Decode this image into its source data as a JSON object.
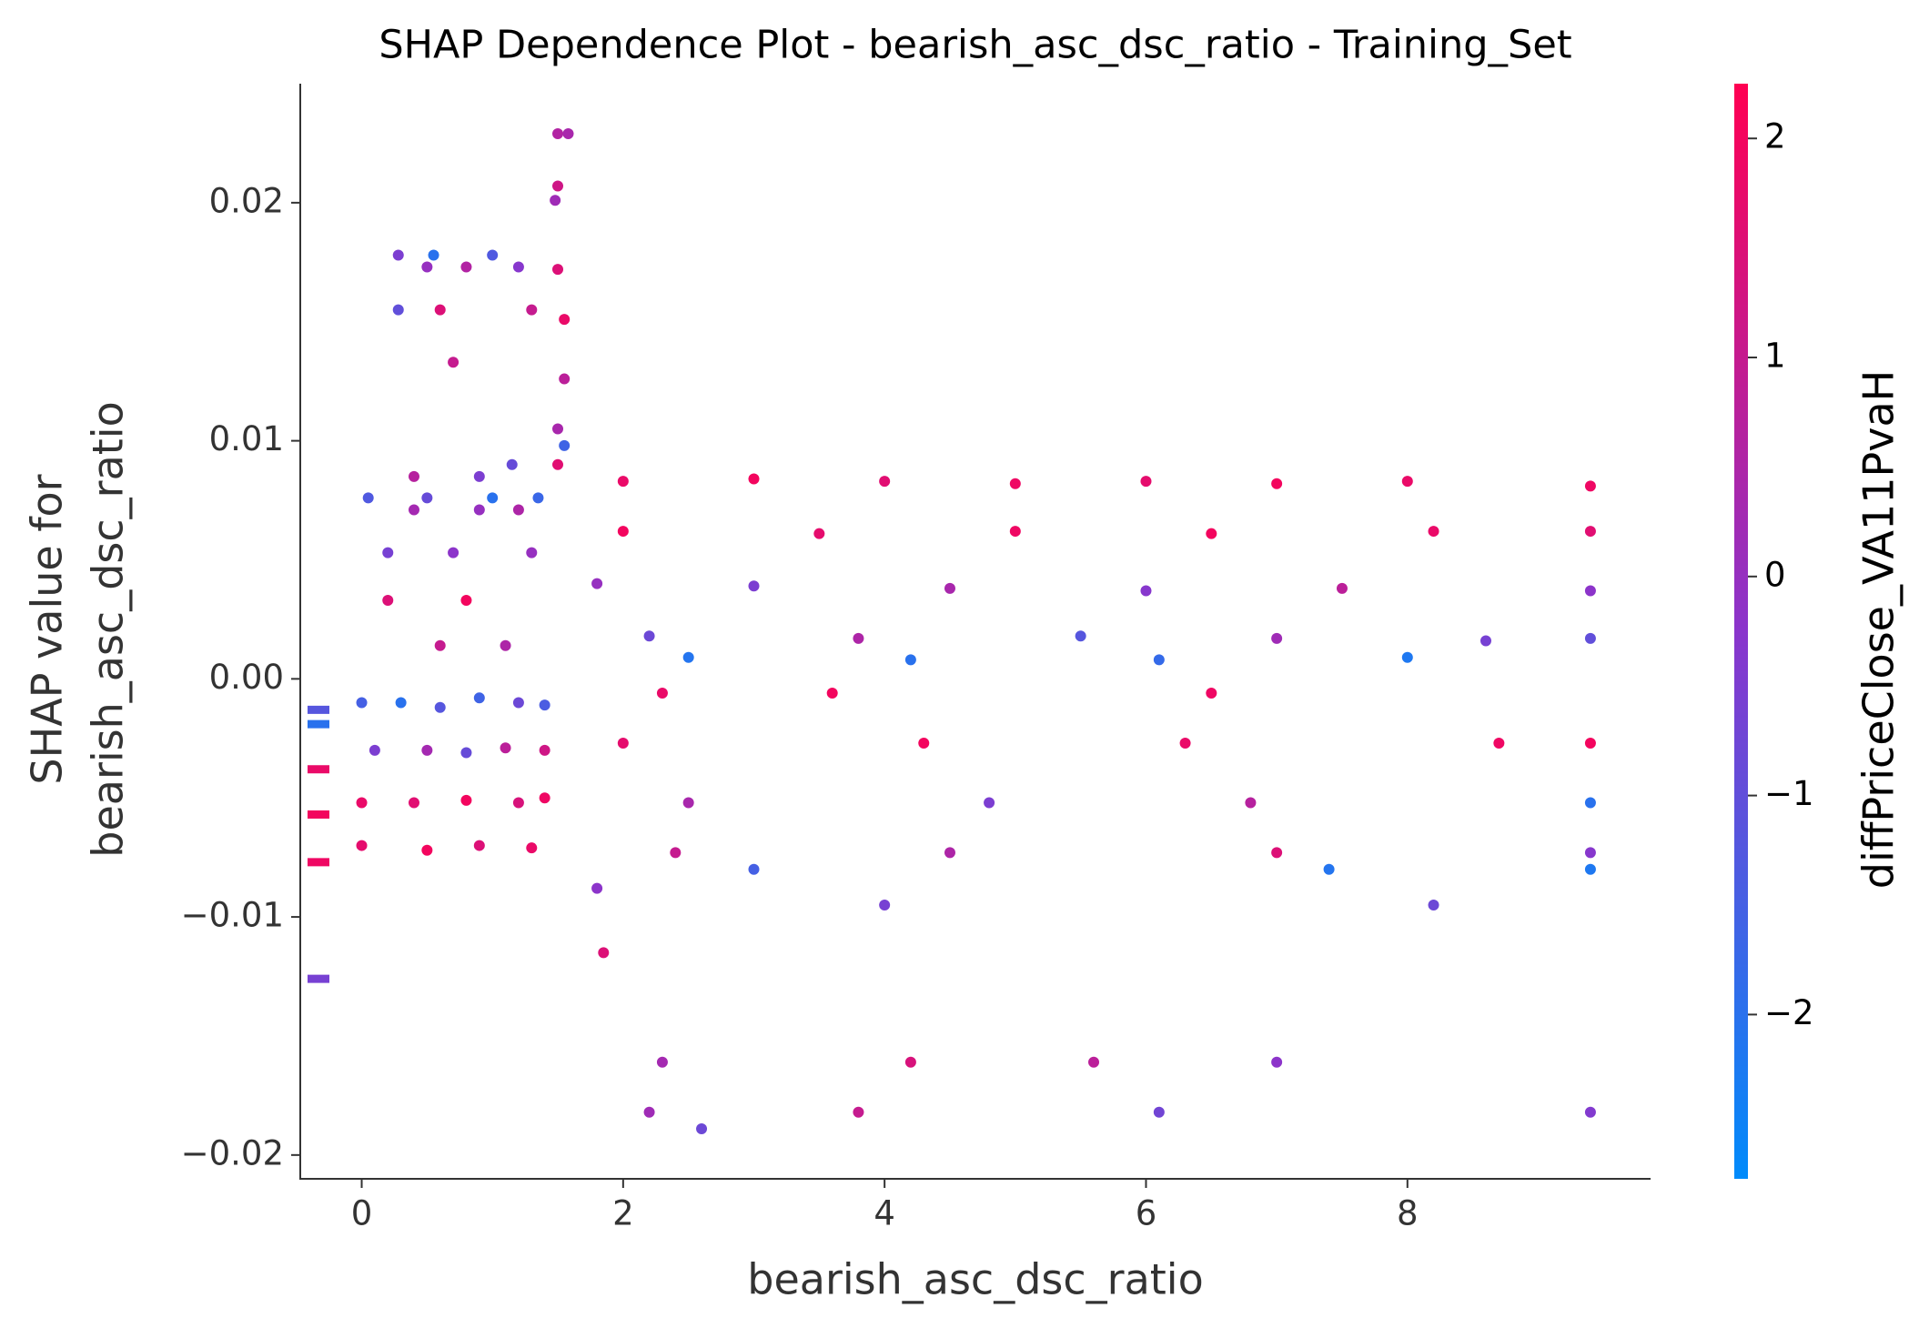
{
  "chart_data": {
    "type": "scatter",
    "title": "SHAP Dependence Plot - bearish_asc_dsc_ratio - Training_Set",
    "x_label": "bearish_asc_dsc_ratio",
    "y_label": [
      "SHAP value for",
      "bearish_asc_dsc_ratio"
    ],
    "colorbar_label": "diffPriceClose_VA11PvaH",
    "colormap": [
      "#008bfb",
      "#8a35cc",
      "#ff0052"
    ],
    "xlim": [
      -0.47,
      9.86
    ],
    "xticks": [
      0,
      2,
      4,
      6,
      8
    ],
    "ylim": [
      -0.021,
      0.025
    ],
    "yticks": [
      {
        "value": -0.02,
        "label": "−0.02"
      },
      {
        "value": -0.01,
        "label": "−0.01"
      },
      {
        "value": 0,
        "label": "0.00"
      },
      0.01,
      0.02
    ],
    "clim": [
      -2.75,
      2.25
    ],
    "cticks": [
      {
        "value": -2,
        "label": "−2"
      },
      {
        "value": -1,
        "label": "−1"
      },
      0,
      1,
      2
    ],
    "x": [
      0.0,
      0.3,
      0.6,
      0.9,
      1.2,
      1.4,
      0.1,
      0.5,
      0.8,
      1.1,
      1.4,
      0.0,
      0.4,
      0.8,
      1.2,
      1.4,
      0.0,
      0.5,
      0.9,
      1.3,
      0.28,
      0.55,
      1.0,
      0.5,
      0.8,
      1.2,
      0.28,
      0.6,
      1.3,
      0.7,
      0.05,
      0.5,
      1.0,
      1.35,
      0.4,
      0.9,
      1.2,
      0.2,
      0.7,
      1.3,
      0.4,
      0.9,
      1.15,
      0.2,
      0.8,
      0.6,
      1.1,
      1.5,
      1.58,
      1.5,
      1.48,
      1.5,
      1.55,
      1.55,
      1.5,
      1.55,
      1.5,
      2.0,
      3.0,
      4.0,
      5.0,
      6.0,
      7.0,
      8.0,
      9.4,
      2.0,
      3.5,
      5.0,
      6.5,
      8.2,
      9.4,
      1.8,
      3.0,
      4.5,
      6.0,
      7.5,
      9.4,
      2.2,
      3.8,
      5.5,
      7.0,
      8.6,
      9.4,
      2.5,
      4.2,
      6.1,
      8.0,
      2.3,
      3.6,
      6.5,
      2.0,
      4.3,
      6.3,
      8.7,
      9.4,
      2.5,
      4.8,
      6.8,
      9.4,
      2.4,
      4.5,
      7.0,
      9.4,
      3.0,
      7.4,
      9.4,
      1.8,
      4.0,
      8.2,
      1.85,
      2.3,
      4.2,
      5.6,
      7.0,
      2.2,
      3.8,
      6.1,
      9.4,
      2.6
    ],
    "values": [
      -0.001,
      -0.001,
      -0.0012,
      -0.0008,
      -0.001,
      -0.0011,
      -0.003,
      -0.003,
      -0.0031,
      -0.0029,
      -0.003,
      -0.0052,
      -0.0052,
      -0.0051,
      -0.0052,
      -0.005,
      -0.007,
      -0.0072,
      -0.007,
      -0.0071,
      0.0178,
      0.0178,
      0.0178,
      0.0173,
      0.0173,
      0.0173,
      0.0155,
      0.0155,
      0.0155,
      0.0133,
      0.0076,
      0.0076,
      0.0076,
      0.0076,
      0.0071,
      0.0071,
      0.0071,
      0.0053,
      0.0053,
      0.0053,
      0.0085,
      0.0085,
      0.009,
      0.0033,
      0.0033,
      0.0014,
      0.0014,
      0.0229,
      0.0229,
      0.0207,
      0.0201,
      0.0172,
      0.0151,
      0.0126,
      0.0105,
      0.0098,
      0.009,
      0.0083,
      0.0084,
      0.0083,
      0.0082,
      0.0083,
      0.0082,
      0.0083,
      0.0081,
      0.0062,
      0.0061,
      0.0062,
      0.0061,
      0.0062,
      0.0062,
      0.004,
      0.0039,
      0.0038,
      0.0037,
      0.0038,
      0.0037,
      0.0018,
      0.0017,
      0.0018,
      0.0017,
      0.0016,
      0.0017,
      0.0009,
      0.0008,
      0.0008,
      0.0009,
      -0.0006,
      -0.0006,
      -0.0006,
      -0.0027,
      -0.0027,
      -0.0027,
      -0.0027,
      -0.0027,
      -0.0052,
      -0.0052,
      -0.0052,
      -0.0052,
      -0.0073,
      -0.0073,
      -0.0073,
      -0.0073,
      -0.008,
      -0.008,
      -0.008,
      -0.0088,
      -0.0095,
      -0.0095,
      -0.0115,
      -0.0161,
      -0.0161,
      -0.0161,
      -0.0161,
      -0.0182,
      -0.0182,
      -0.0182,
      -0.0182,
      -0.0189
    ],
    "color_values": [
      -1.5,
      -2.0,
      -1.2,
      -1.6,
      -0.8,
      -1.4,
      -0.5,
      0.3,
      -0.9,
      0.8,
      1.2,
      1.8,
      1.6,
      2.0,
      1.4,
      1.9,
      1.7,
      2.0,
      1.5,
      1.8,
      -0.5,
      -2.0,
      -1.3,
      0.0,
      0.6,
      -0.3,
      -1.0,
      1.5,
      1.0,
      1.0,
      -1.3,
      -0.9,
      -2.0,
      -1.7,
      0.3,
      0.0,
      0.5,
      -0.6,
      -0.2,
      0.0,
      0.7,
      -0.5,
      -0.9,
      1.5,
      2.0,
      1.0,
      0.5,
      0.6,
      0.4,
      1.2,
      0.2,
      1.5,
      1.8,
      0.8,
      0.4,
      -1.6,
      1.6,
      1.8,
      2.0,
      1.6,
      1.9,
      1.7,
      2.0,
      1.8,
      1.9,
      2.0,
      1.7,
      1.9,
      2.0,
      1.8,
      1.6,
      0.0,
      -0.5,
      0.4,
      -0.3,
      0.8,
      -0.2,
      -0.8,
      0.5,
      -1.2,
      0.2,
      -0.6,
      -1.0,
      -2.1,
      -2.0,
      -1.8,
      -2.2,
      1.8,
      2.0,
      1.9,
      1.7,
      2.0,
      1.8,
      1.9,
      2.0,
      0.4,
      -0.5,
      0.7,
      -2.0,
      1.0,
      0.5,
      1.5,
      -0.3,
      -1.5,
      -2.1,
      -2.2,
      -0.2,
      -0.6,
      -0.8,
      1.5,
      0.3,
      1.4,
      0.8,
      -0.2,
      0.2,
      1.0,
      -0.7,
      -0.4,
      -0.8
    ],
    "nan_values": [
      -0.0013,
      -0.0019,
      -0.0038,
      -0.0057,
      -0.0077,
      -0.0126
    ],
    "nan_color_values": [
      -1.2,
      -2.0,
      1.8,
      2.0,
      1.9,
      -0.6
    ]
  }
}
